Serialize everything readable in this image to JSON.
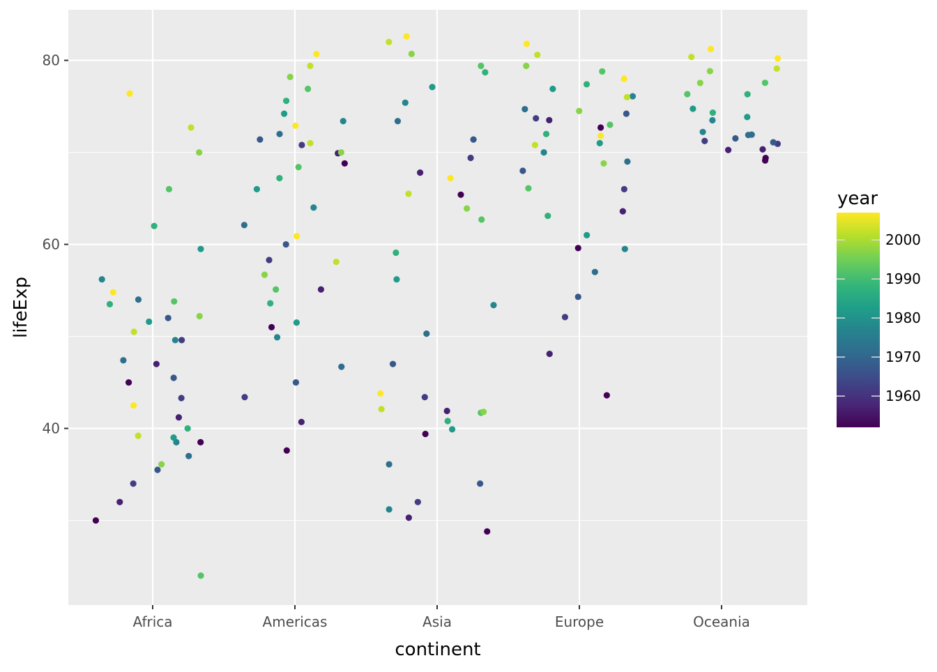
{
  "chart_data": {
    "type": "scatter",
    "title": "",
    "xlabel": "continent",
    "ylabel": "lifeExp",
    "categories": [
      "Africa",
      "Americas",
      "Asia",
      "Europe",
      "Oceania"
    ],
    "yticks": [
      40,
      60,
      80
    ],
    "ylim": [
      20.8,
      85.5
    ],
    "grid": true,
    "jitter": true,
    "color_scale": {
      "name": "viridis",
      "variable": "year",
      "range": [
        1952,
        2007
      ]
    },
    "legend": {
      "title": "year",
      "position": "right",
      "ticks": [
        1960,
        1970,
        1980,
        1990,
        2000
      ]
    },
    "panel_color": "#ebebeb",
    "series": [
      {
        "category": "Africa",
        "points": [
          [
            1952,
            30.0
          ],
          [
            1952,
            38.5
          ],
          [
            1952,
            45.0
          ],
          [
            1957,
            32.0
          ],
          [
            1957,
            41.2
          ],
          [
            1957,
            47.0
          ],
          [
            1962,
            34.0
          ],
          [
            1962,
            43.3
          ],
          [
            1962,
            49.6
          ],
          [
            1967,
            35.5
          ],
          [
            1967,
            45.5
          ],
          [
            1967,
            52.0
          ],
          [
            1972,
            37.0
          ],
          [
            1972,
            47.4
          ],
          [
            1972,
            54.0
          ],
          [
            1977,
            38.5
          ],
          [
            1977,
            49.6
          ],
          [
            1977,
            56.2
          ],
          [
            1982,
            39.0
          ],
          [
            1982,
            51.6
          ],
          [
            1982,
            59.5
          ],
          [
            1987,
            40.0
          ],
          [
            1987,
            53.5
          ],
          [
            1987,
            62.0
          ],
          [
            1992,
            24.0
          ],
          [
            1992,
            53.8
          ],
          [
            1992,
            66.0
          ],
          [
            1997,
            36.1
          ],
          [
            1997,
            52.2
          ],
          [
            1997,
            70.0
          ],
          [
            2002,
            39.2
          ],
          [
            2002,
            50.5
          ],
          [
            2002,
            72.7
          ],
          [
            2007,
            42.5
          ],
          [
            2007,
            54.8
          ],
          [
            2007,
            76.4
          ]
        ]
      },
      {
        "category": "Americas",
        "points": [
          [
            1952,
            37.6
          ],
          [
            1952,
            51.0
          ],
          [
            1952,
            68.8
          ],
          [
            1957,
            40.7
          ],
          [
            1957,
            55.1
          ],
          [
            1957,
            69.9
          ],
          [
            1962,
            43.4
          ],
          [
            1962,
            58.3
          ],
          [
            1962,
            70.8
          ],
          [
            1967,
            45.0
          ],
          [
            1967,
            60.0
          ],
          [
            1967,
            71.4
          ],
          [
            1972,
            46.7
          ],
          [
            1972,
            62.1
          ],
          [
            1972,
            72.0
          ],
          [
            1977,
            49.9
          ],
          [
            1977,
            64.0
          ],
          [
            1977,
            73.4
          ],
          [
            1982,
            51.5
          ],
          [
            1982,
            66.0
          ],
          [
            1982,
            74.2
          ],
          [
            1987,
            53.6
          ],
          [
            1987,
            67.2
          ],
          [
            1987,
            75.6
          ],
          [
            1992,
            55.1
          ],
          [
            1992,
            68.4
          ],
          [
            1992,
            76.9
          ],
          [
            1997,
            56.7
          ],
          [
            1997,
            70.0
          ],
          [
            1997,
            78.2
          ],
          [
            2002,
            58.1
          ],
          [
            2002,
            71.0
          ],
          [
            2002,
            79.4
          ],
          [
            2007,
            60.9
          ],
          [
            2007,
            72.9
          ],
          [
            2007,
            80.7
          ]
        ]
      },
      {
        "category": "Asia",
        "points": [
          [
            1952,
            28.8
          ],
          [
            1952,
            39.4
          ],
          [
            1952,
            65.4
          ],
          [
            1957,
            30.3
          ],
          [
            1957,
            41.9
          ],
          [
            1957,
            67.8
          ],
          [
            1962,
            32.0
          ],
          [
            1962,
            43.4
          ],
          [
            1962,
            69.4
          ],
          [
            1967,
            34.0
          ],
          [
            1967,
            47.0
          ],
          [
            1967,
            71.4
          ],
          [
            1972,
            36.1
          ],
          [
            1972,
            50.3
          ],
          [
            1972,
            73.4
          ],
          [
            1977,
            31.2
          ],
          [
            1977,
            53.4
          ],
          [
            1977,
            75.4
          ],
          [
            1982,
            39.9
          ],
          [
            1982,
            56.2
          ],
          [
            1982,
            77.1
          ],
          [
            1987,
            40.8
          ],
          [
            1987,
            59.1
          ],
          [
            1987,
            78.7
          ],
          [
            1992,
            41.7
          ],
          [
            1992,
            62.7
          ],
          [
            1992,
            79.4
          ],
          [
            1997,
            41.8
          ],
          [
            1997,
            63.9
          ],
          [
            1997,
            80.7
          ],
          [
            2002,
            42.1
          ],
          [
            2002,
            65.5
          ],
          [
            2002,
            82.0
          ],
          [
            2007,
            43.8
          ],
          [
            2007,
            67.2
          ],
          [
            2007,
            82.6
          ]
        ]
      },
      {
        "category": "Europe",
        "points": [
          [
            1952,
            43.6
          ],
          [
            1952,
            59.6
          ],
          [
            1952,
            72.7
          ],
          [
            1957,
            48.1
          ],
          [
            1957,
            63.6
          ],
          [
            1957,
            73.5
          ],
          [
            1962,
            52.1
          ],
          [
            1962,
            66.0
          ],
          [
            1962,
            73.7
          ],
          [
            1967,
            54.3
          ],
          [
            1967,
            68.0
          ],
          [
            1967,
            74.2
          ],
          [
            1972,
            57.0
          ],
          [
            1972,
            69.0
          ],
          [
            1972,
            74.7
          ],
          [
            1977,
            59.5
          ],
          [
            1977,
            70.0
          ],
          [
            1977,
            76.1
          ],
          [
            1982,
            61.0
          ],
          [
            1982,
            71.0
          ],
          [
            1982,
            76.9
          ],
          [
            1987,
            63.1
          ],
          [
            1987,
            72.0
          ],
          [
            1987,
            77.4
          ],
          [
            1992,
            66.1
          ],
          [
            1992,
            73.0
          ],
          [
            1992,
            78.8
          ],
          [
            1997,
            68.8
          ],
          [
            1997,
            74.5
          ],
          [
            1997,
            79.4
          ],
          [
            2002,
            70.8
          ],
          [
            2002,
            76.0
          ],
          [
            2002,
            80.6
          ],
          [
            2007,
            71.8
          ],
          [
            2007,
            78.0
          ],
          [
            2007,
            81.8
          ]
        ]
      },
      {
        "category": "Oceania",
        "points": [
          [
            1952,
            69.12
          ],
          [
            1957,
            70.33
          ],
          [
            1962,
            70.93
          ],
          [
            1967,
            71.1
          ],
          [
            1972,
            71.93
          ],
          [
            1977,
            73.49
          ],
          [
            1982,
            74.74
          ],
          [
            1987,
            76.32
          ],
          [
            1992,
            77.56
          ],
          [
            1997,
            78.83
          ],
          [
            2002,
            80.37
          ],
          [
            2007,
            81.235
          ],
          [
            1952,
            69.39
          ],
          [
            1957,
            70.26
          ],
          [
            1962,
            71.24
          ],
          [
            1967,
            71.52
          ],
          [
            1972,
            71.89
          ],
          [
            1977,
            72.22
          ],
          [
            1982,
            73.84
          ],
          [
            1987,
            74.32
          ],
          [
            1992,
            76.33
          ],
          [
            1997,
            77.55
          ],
          [
            2002,
            79.11
          ],
          [
            2007,
            80.204
          ]
        ]
      }
    ]
  }
}
